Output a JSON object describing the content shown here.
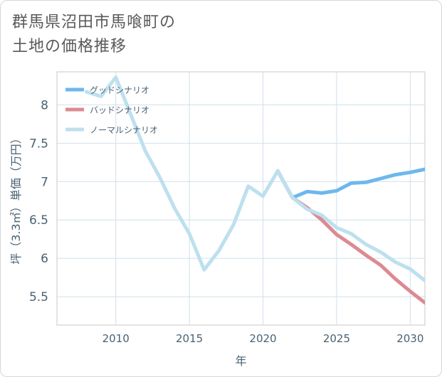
{
  "title_lines": [
    "群馬県沼田市馬喰町の",
    "土地の価格推移"
  ],
  "chart_data": {
    "type": "line",
    "title": "群馬県沼田市馬喰町の土地の価格推移",
    "xlabel": "年",
    "ylabel": "坪（3.3㎡）単価（万円）",
    "xlim": [
      2006,
      2031
    ],
    "ylim": [
      5.13,
      8.43
    ],
    "xticks": [
      2010,
      2015,
      2020,
      2025,
      2030
    ],
    "yticks": [
      5.5,
      6,
      6.5,
      7,
      7.5,
      8
    ],
    "xtick_labels": [
      "2010",
      "2015",
      "2020",
      "2025",
      "2030"
    ],
    "ytick_labels": [
      "5.5",
      "6",
      "6.5",
      "7",
      "7.5",
      "8"
    ],
    "legend_position": "top-left",
    "grid": true,
    "series": [
      {
        "name": "グッドシナリオ",
        "color": "#6cb8ee",
        "points": [
          [
            2021,
            7.14
          ],
          [
            2022,
            6.79
          ],
          [
            2023,
            6.87
          ],
          [
            2024,
            6.85
          ],
          [
            2025,
            6.88
          ],
          [
            2026,
            6.98
          ],
          [
            2027,
            6.99
          ],
          [
            2028,
            7.04
          ],
          [
            2029,
            7.09
          ],
          [
            2030,
            7.12
          ],
          [
            2031,
            7.16
          ]
        ]
      },
      {
        "name": "バッドシナリオ",
        "color": "#dc8a92",
        "points": [
          [
            2021,
            7.14
          ],
          [
            2022,
            6.79
          ],
          [
            2023,
            6.66
          ],
          [
            2024,
            6.5
          ],
          [
            2025,
            6.31
          ],
          [
            2026,
            6.18
          ],
          [
            2027,
            6.04
          ],
          [
            2028,
            5.91
          ],
          [
            2029,
            5.73
          ],
          [
            2030,
            5.57
          ],
          [
            2031,
            5.42
          ]
        ]
      },
      {
        "name": "ノーマルシナリオ",
        "color": "#bde0ee",
        "points": [
          [
            2008,
            8.17
          ],
          [
            2009,
            8.11
          ],
          [
            2010,
            8.36
          ],
          [
            2011,
            7.88
          ],
          [
            2012,
            7.4
          ],
          [
            2013,
            7.05
          ],
          [
            2014,
            6.65
          ],
          [
            2015,
            6.32
          ],
          [
            2016,
            5.85
          ],
          [
            2017,
            6.1
          ],
          [
            2018,
            6.44
          ],
          [
            2019,
            6.94
          ],
          [
            2020,
            6.81
          ],
          [
            2021,
            7.14
          ],
          [
            2022,
            6.79
          ],
          [
            2023,
            6.64
          ],
          [
            2024,
            6.56
          ],
          [
            2025,
            6.4
          ],
          [
            2026,
            6.32
          ],
          [
            2027,
            6.18
          ],
          [
            2028,
            6.08
          ],
          [
            2029,
            5.95
          ],
          [
            2030,
            5.86
          ],
          [
            2031,
            5.71
          ]
        ]
      }
    ]
  }
}
